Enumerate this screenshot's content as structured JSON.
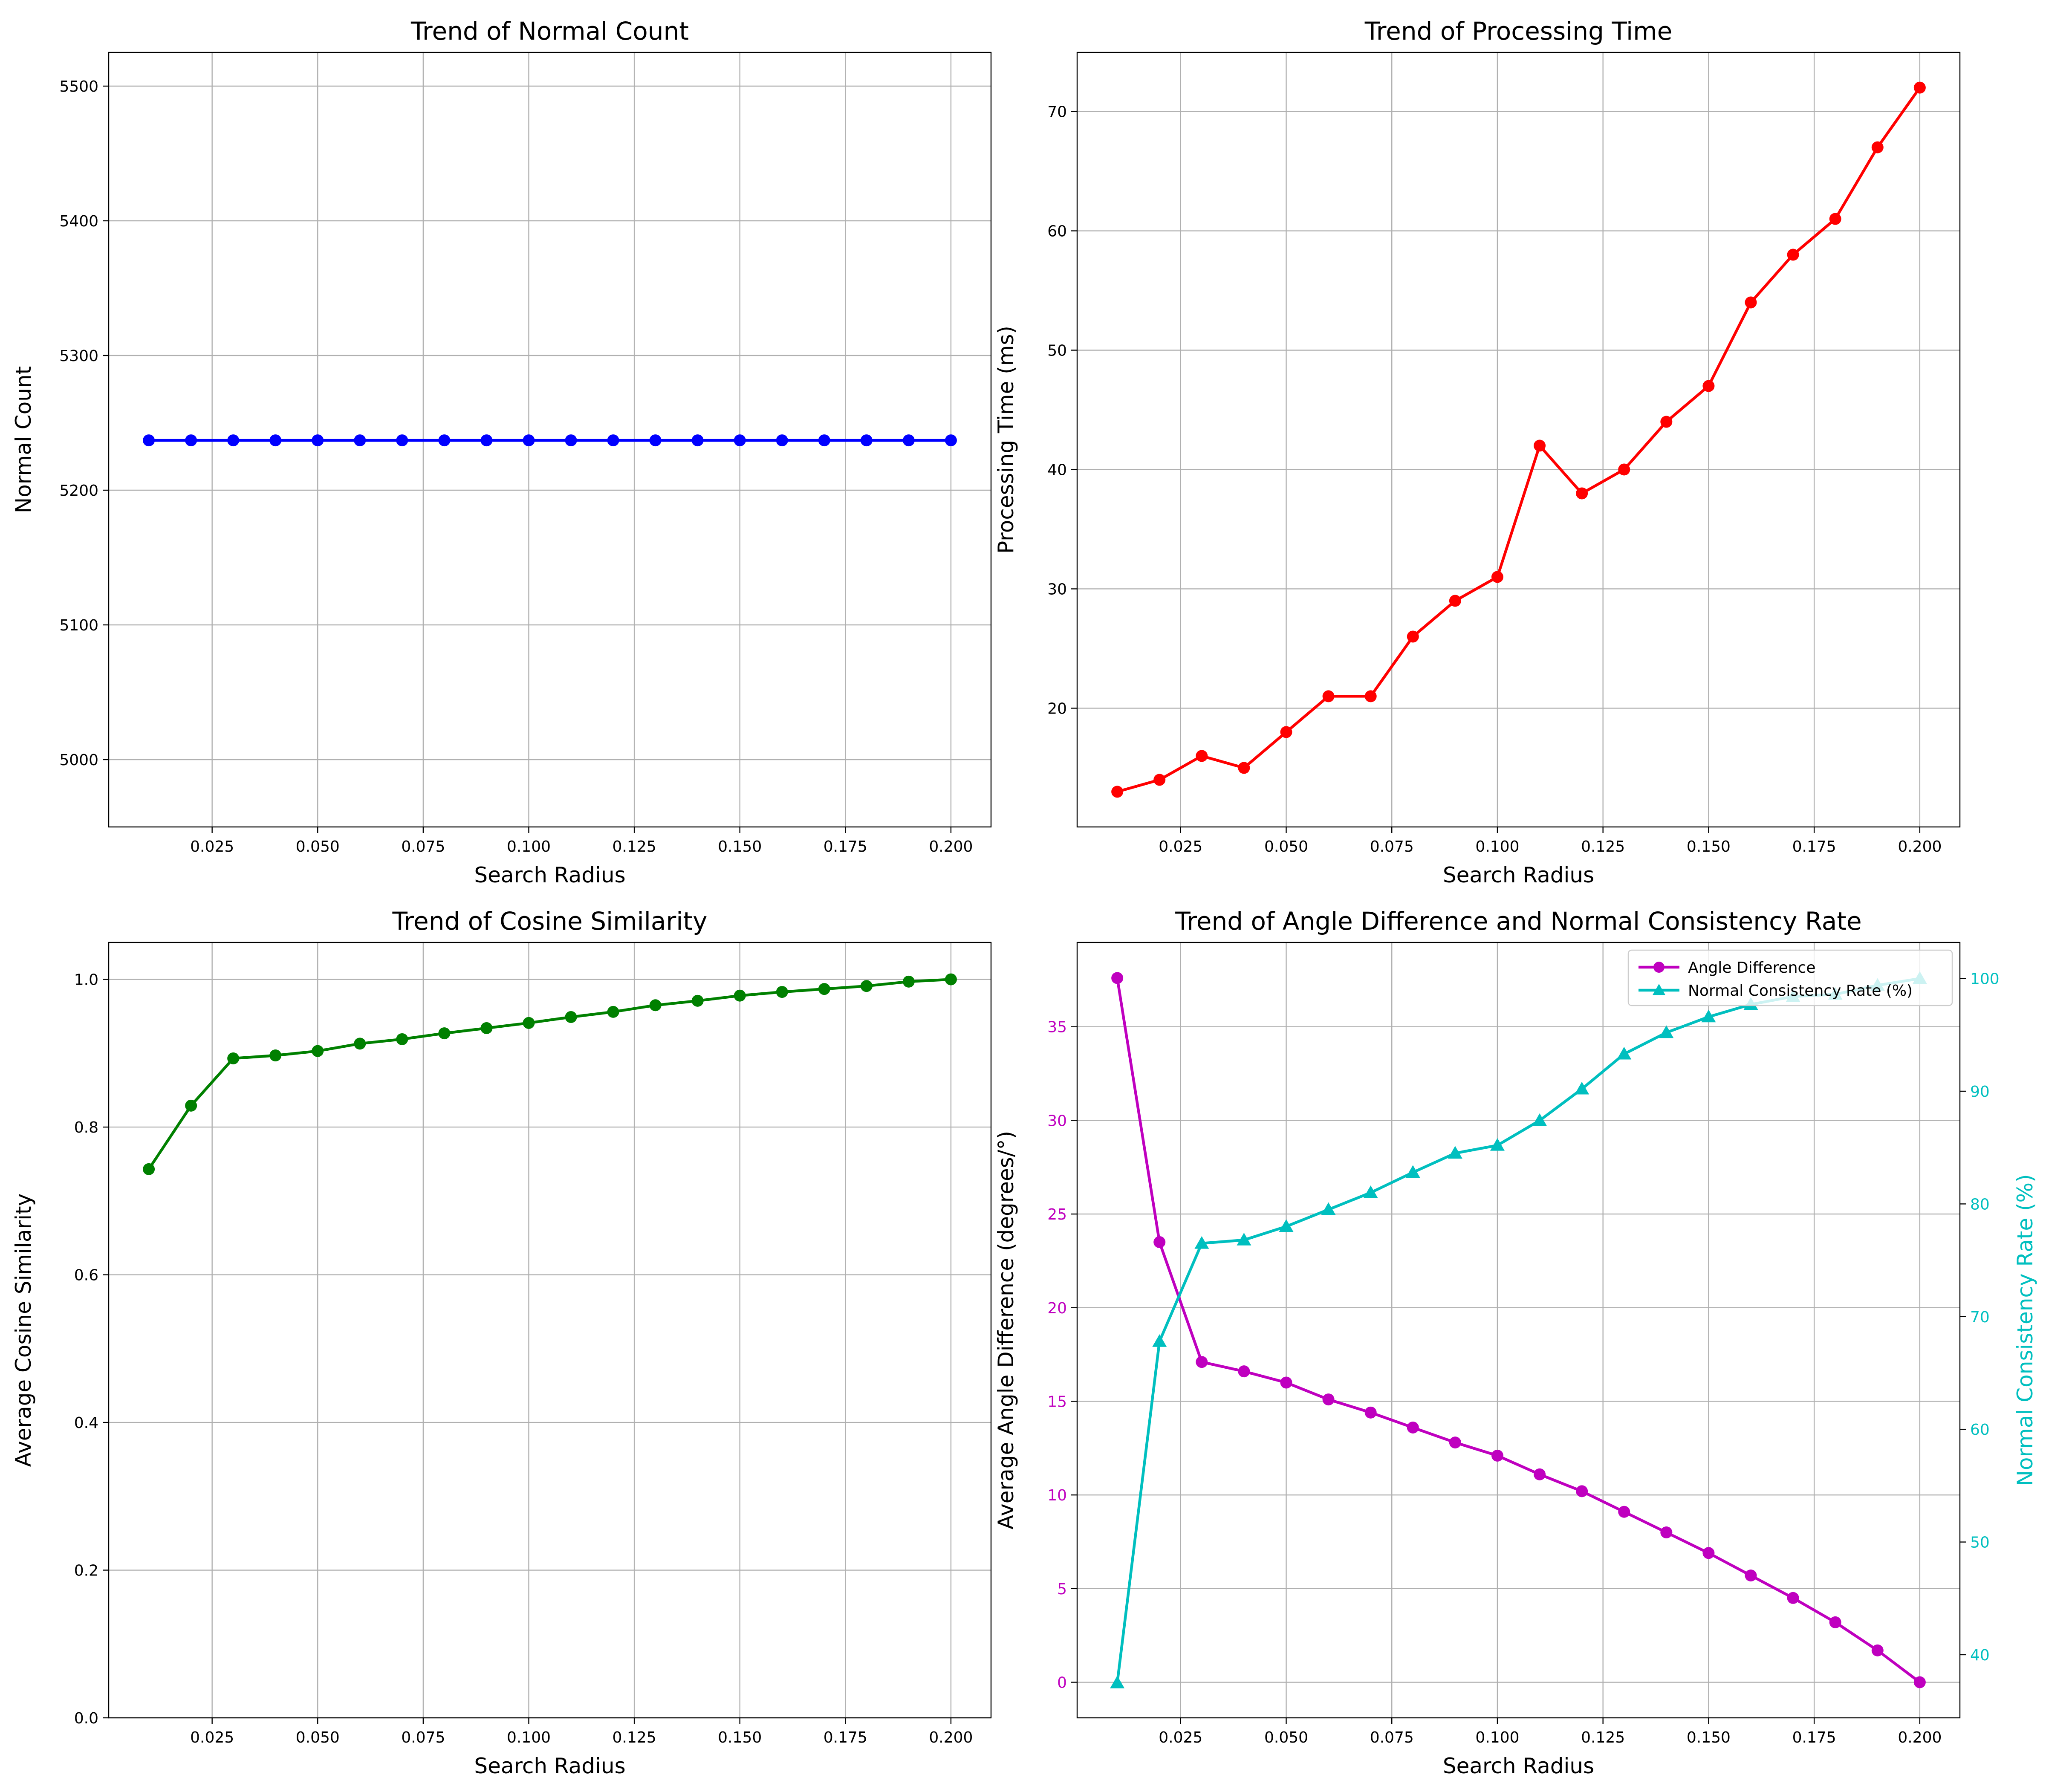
{
  "chart_data": [
    {
      "type": "line",
      "title": "Trend of Normal Count",
      "xlabel": "Search Radius",
      "ylabel": "Normal Count",
      "x": [
        0.01,
        0.02,
        0.03,
        0.04,
        0.05,
        0.06,
        0.07,
        0.08,
        0.09,
        0.1,
        0.11,
        0.12,
        0.13,
        0.14,
        0.15,
        0.16,
        0.17,
        0.18,
        0.19,
        0.2
      ],
      "xlim": [
        0.0005,
        0.2095
      ],
      "ylim": [
        4950,
        5525
      ],
      "xticks": [
        0.025,
        0.05,
        0.075,
        0.1,
        0.125,
        0.15,
        0.175,
        0.2
      ],
      "xtick_labels": [
        "0.025",
        "0.050",
        "0.075",
        "0.100",
        "0.125",
        "0.150",
        "0.175",
        "0.200"
      ],
      "yticks": [
        5000,
        5100,
        5200,
        5300,
        5400,
        5500
      ],
      "ytick_labels": [
        "5000",
        "5100",
        "5200",
        "5300",
        "5400",
        "5500"
      ],
      "grid": true,
      "series": [
        {
          "color": "#0000ff",
          "marker": "circle",
          "values": [
            5237,
            5237,
            5237,
            5237,
            5237,
            5237,
            5237,
            5237,
            5237,
            5237,
            5237,
            5237,
            5237,
            5237,
            5237,
            5237,
            5237,
            5237,
            5237,
            5237
          ]
        }
      ]
    },
    {
      "type": "line",
      "title": "Trend of Processing Time",
      "xlabel": "Search Radius",
      "ylabel": "Processing Time (ms)",
      "x": [
        0.01,
        0.02,
        0.03,
        0.04,
        0.05,
        0.06,
        0.07,
        0.08,
        0.09,
        0.1,
        0.11,
        0.12,
        0.13,
        0.14,
        0.15,
        0.16,
        0.17,
        0.18,
        0.19,
        0.2
      ],
      "xlim": [
        0.0005,
        0.2095
      ],
      "ylim": [
        10.05,
        74.95
      ],
      "xticks": [
        0.025,
        0.05,
        0.075,
        0.1,
        0.125,
        0.15,
        0.175,
        0.2
      ],
      "xtick_labels": [
        "0.025",
        "0.050",
        "0.075",
        "0.100",
        "0.125",
        "0.150",
        "0.175",
        "0.200"
      ],
      "yticks": [
        20,
        30,
        40,
        50,
        60,
        70
      ],
      "ytick_labels": [
        "20",
        "30",
        "40",
        "50",
        "60",
        "70"
      ],
      "grid": true,
      "series": [
        {
          "color": "#ff0000",
          "marker": "circle",
          "values": [
            13,
            14,
            16,
            15,
            18,
            21,
            21,
            26,
            29,
            31,
            42,
            38,
            40,
            44,
            47,
            54,
            58,
            61,
            67,
            72
          ]
        }
      ]
    },
    {
      "type": "line",
      "title": "Trend of Cosine Similarity",
      "xlabel": "Search Radius",
      "ylabel": "Average Cosine Similarity",
      "x": [
        0.01,
        0.02,
        0.03,
        0.04,
        0.05,
        0.06,
        0.07,
        0.08,
        0.09,
        0.1,
        0.11,
        0.12,
        0.13,
        0.14,
        0.15,
        0.16,
        0.17,
        0.18,
        0.19,
        0.2
      ],
      "xlim": [
        0.0005,
        0.2095
      ],
      "ylim": [
        0,
        1.05
      ],
      "xticks": [
        0.025,
        0.05,
        0.075,
        0.1,
        0.125,
        0.15,
        0.175,
        0.2
      ],
      "xtick_labels": [
        "0.025",
        "0.050",
        "0.075",
        "0.100",
        "0.125",
        "0.150",
        "0.175",
        "0.200"
      ],
      "yticks": [
        0,
        0.2,
        0.4,
        0.6,
        0.8,
        1.0
      ],
      "ytick_labels": [
        "0.0",
        "0.2",
        "0.4",
        "0.6",
        "0.8",
        "1.0"
      ],
      "grid": true,
      "series": [
        {
          "color": "#008000",
          "marker": "circle",
          "values": [
            0.743,
            0.829,
            0.893,
            0.897,
            0.903,
            0.913,
            0.919,
            0.927,
            0.934,
            0.941,
            0.949,
            0.956,
            0.965,
            0.971,
            0.978,
            0.983,
            0.987,
            0.991,
            0.997,
            1.0
          ]
        }
      ]
    },
    {
      "type": "line",
      "title": "Trend of Angle Difference and Normal Consistency Rate",
      "xlabel": "Search Radius",
      "ylabel": "Average Angle Difference (degrees/°)",
      "ylabel_right": "Normal Consistency Rate (%)",
      "x": [
        0.01,
        0.02,
        0.03,
        0.04,
        0.05,
        0.06,
        0.07,
        0.08,
        0.09,
        0.1,
        0.11,
        0.12,
        0.13,
        0.14,
        0.15,
        0.16,
        0.17,
        0.18,
        0.19,
        0.2
      ],
      "xlim": [
        0.0005,
        0.2095
      ],
      "ylim": [
        -1.9,
        39.5
      ],
      "ylim_right": [
        34.4,
        103.2
      ],
      "xticks": [
        0.025,
        0.05,
        0.075,
        0.1,
        0.125,
        0.15,
        0.175,
        0.2
      ],
      "xtick_labels": [
        "0.025",
        "0.050",
        "0.075",
        "0.100",
        "0.125",
        "0.150",
        "0.175",
        "0.200"
      ],
      "yticks": [
        0,
        5,
        10,
        15,
        20,
        25,
        30,
        35
      ],
      "ytick_labels": [
        "0",
        "5",
        "10",
        "15",
        "20",
        "25",
        "30",
        "35"
      ],
      "yticks_right": [
        40,
        50,
        60,
        70,
        80,
        90,
        100
      ],
      "ytick_labels_right": [
        "40",
        "50",
        "60",
        "70",
        "80",
        "90",
        "100"
      ],
      "grid": true,
      "legend_position": "top-right",
      "series": [
        {
          "name": "Angle Difference",
          "axis": "left",
          "color": "#bf00bf",
          "marker": "circle",
          "values": [
            37.6,
            23.5,
            17.1,
            16.6,
            16.0,
            15.1,
            14.4,
            13.6,
            12.8,
            12.1,
            11.1,
            10.2,
            9.1,
            8.0,
            6.9,
            5.7,
            4.5,
            3.2,
            1.7,
            0.0
          ]
        },
        {
          "name": "Normal Consistency Rate (%)",
          "axis": "right",
          "color": "#00bfbf",
          "marker": "triangle",
          "values": [
            37.5,
            67.8,
            76.5,
            76.8,
            78.0,
            79.5,
            81.0,
            82.8,
            84.5,
            85.2,
            87.4,
            90.2,
            93.3,
            95.2,
            96.6,
            97.7,
            98.4,
            98.6,
            99.4,
            100.0
          ]
        }
      ]
    }
  ]
}
